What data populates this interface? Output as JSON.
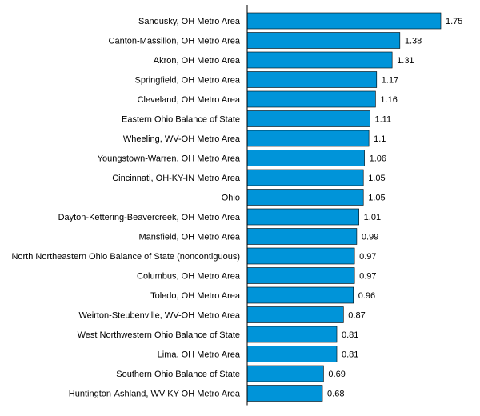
{
  "chart_data": {
    "type": "bar",
    "orientation": "horizontal",
    "title": "",
    "xlabel": "",
    "ylabel": "",
    "bar_color": "#0094D9",
    "xlim": [
      0,
      1.75
    ],
    "grid": false,
    "legend": "none",
    "categories": [
      "Sandusky, OH Metro Area",
      "Canton-Massillon, OH Metro Area",
      "Akron, OH Metro Area",
      "Springfield, OH Metro Area",
      "Cleveland, OH Metro Area",
      "Eastern Ohio Balance of State",
      "Wheeling, WV-OH Metro Area",
      "Youngstown-Warren, OH Metro Area",
      "Cincinnati, OH-KY-IN Metro Area",
      "Ohio",
      "Dayton-Kettering-Beavercreek, OH Metro Area",
      "Mansfield, OH Metro Area",
      "North Northeastern Ohio Balance of State (noncontiguous)",
      "Columbus, OH Metro Area",
      "Toledo, OH Metro Area",
      "Weirton-Steubenville, WV-OH Metro Area",
      "West Northwestern Ohio Balance of State",
      "Lima, OH Metro Area",
      "Southern Ohio Balance of State",
      "Huntington-Ashland, WV-KY-OH Metro Area"
    ],
    "values": [
      1.75,
      1.38,
      1.31,
      1.17,
      1.16,
      1.11,
      1.1,
      1.06,
      1.05,
      1.05,
      1.01,
      0.99,
      0.97,
      0.97,
      0.96,
      0.87,
      0.81,
      0.81,
      0.69,
      0.68
    ],
    "value_labels": [
      "1.75",
      "1.38",
      "1.31",
      "1.17",
      "1.16",
      "1.11",
      "1.1",
      "1.06",
      "1.05",
      "1.05",
      "1.01",
      "0.99",
      "0.97",
      "0.97",
      "0.96",
      "0.87",
      "0.81",
      "0.81",
      "0.69",
      "0.68"
    ]
  }
}
